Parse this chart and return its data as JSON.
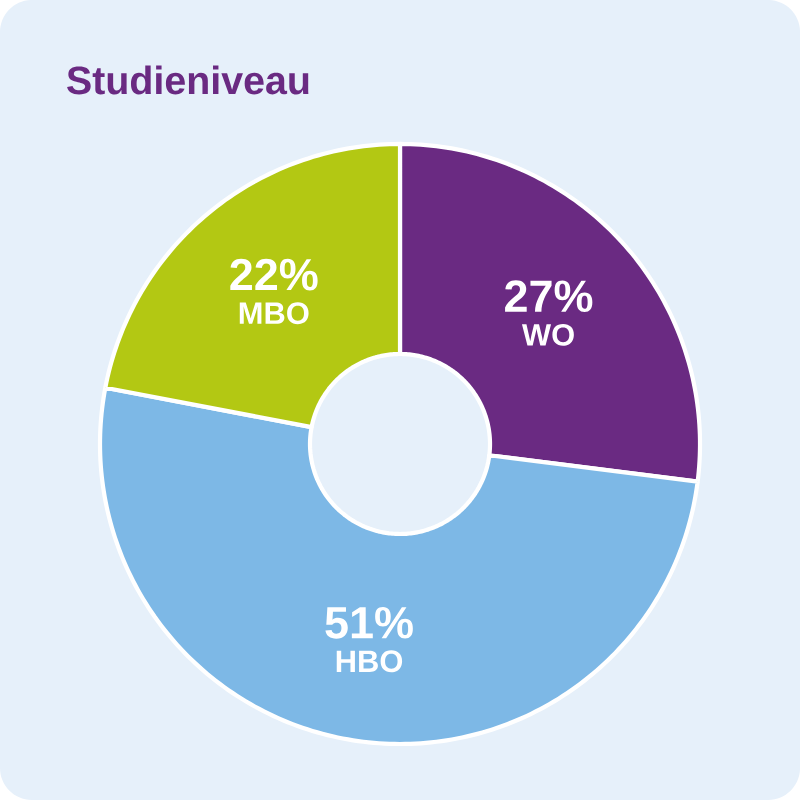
{
  "chart_data": {
    "type": "donut",
    "title": "Studieniveau",
    "categories": [
      "WO",
      "HBO",
      "MBO"
    ],
    "values": [
      27,
      51,
      22
    ],
    "colors": [
      "#6a2a82",
      "#7db8e6",
      "#b3c813"
    ],
    "value_labels": [
      "27%",
      "51%",
      "22%"
    ]
  }
}
